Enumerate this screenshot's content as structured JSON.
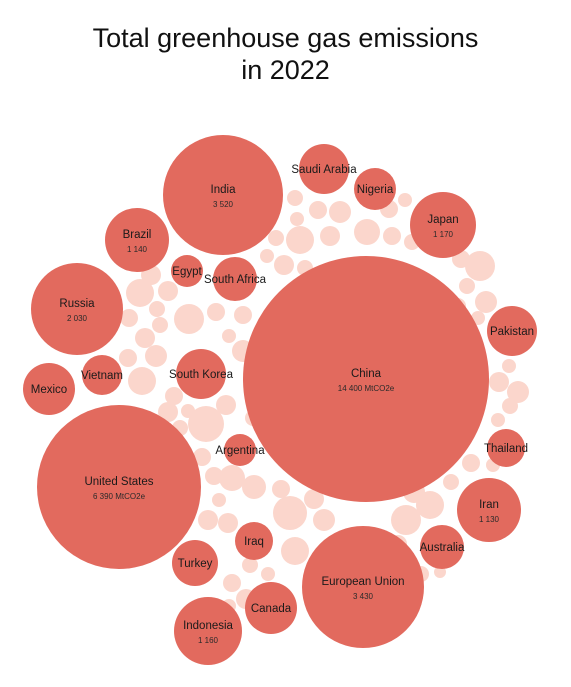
{
  "chart_data": {
    "type": "bubble",
    "title_lines": [
      "Total greenhouse gas emissions",
      "in 2022"
    ],
    "unit": "MtCO2e",
    "colors": {
      "labeled": "#e26a5e",
      "other": "#fbd6cc",
      "background": "#ffffff"
    },
    "countries": [
      {
        "name": "China",
        "value_label": "14 400 MtCO2e",
        "value": 14400
      },
      {
        "name": "United States",
        "value_label": "6 390 MtCO2e",
        "value": 6390
      },
      {
        "name": "India",
        "value_label": "3 520",
        "value": 3520
      },
      {
        "name": "European Union",
        "value_label": "3 430",
        "value": 3430
      },
      {
        "name": "Russia",
        "value_label": "2 030",
        "value": 2030
      },
      {
        "name": "Japan",
        "value_label": "1 170",
        "value": 1170
      },
      {
        "name": "Indonesia",
        "value_label": "1 160",
        "value": 1160
      },
      {
        "name": "Brazil",
        "value_label": "1 140",
        "value": 1140
      },
      {
        "name": "Iran",
        "value_label": "1 130",
        "value": 1130
      },
      {
        "name": "Saudi Arabia"
      },
      {
        "name": "Nigeria"
      },
      {
        "name": "Egypt"
      },
      {
        "name": "South Africa"
      },
      {
        "name": "Pakistan"
      },
      {
        "name": "Vietnam"
      },
      {
        "name": "Mexico"
      },
      {
        "name": "South Korea"
      },
      {
        "name": "Argentina"
      },
      {
        "name": "Thailand"
      },
      {
        "name": "Australia"
      },
      {
        "name": "Iraq"
      },
      {
        "name": "Turkey"
      },
      {
        "name": "Canada"
      }
    ]
  }
}
